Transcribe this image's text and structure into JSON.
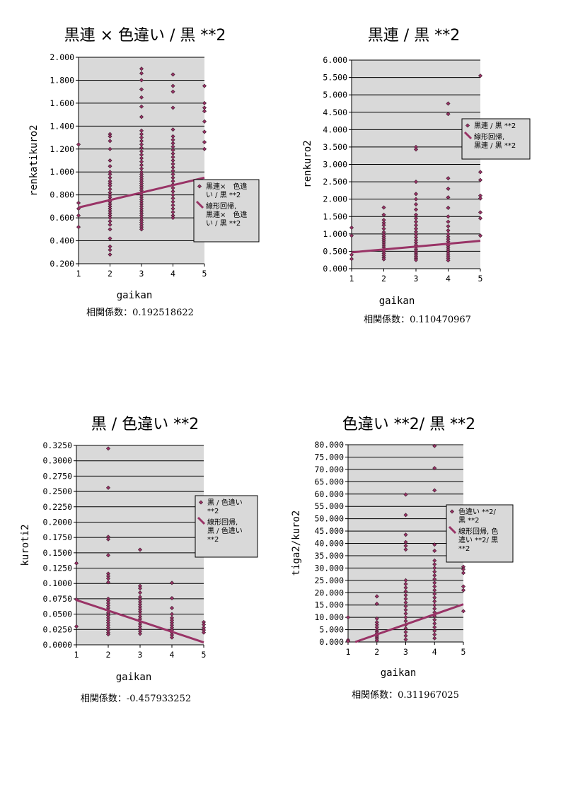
{
  "chart_data": [
    {
      "type": "scatter",
      "title": "黒連 × 色違い / 黒 **2",
      "xlabel": "gaikan",
      "ylabel": "renkatikuro2",
      "xlim": [
        1,
        5
      ],
      "ylim": [
        0.2,
        2.0
      ],
      "x_ticks": [
        "1",
        "2",
        "3",
        "4",
        "5"
      ],
      "y_ticks": [
        "0.200",
        "0.400",
        "0.600",
        "0.800",
        "1.000",
        "1.200",
        "1.400",
        "1.600",
        "1.800",
        "2.000"
      ],
      "correlation_label": "相関係数：0.192518622",
      "legend": {
        "position": "right",
        "series_label": [
          "黒連×　色違",
          "い / 黒 **2"
        ],
        "trend_label": [
          "線形回帰,",
          "黒連×　色違",
          "い / 黒 **2"
        ]
      },
      "trendline": {
        "x": [
          1,
          5
        ],
        "y": [
          0.69,
          0.95
        ]
      },
      "series": [
        {
          "x": 1,
          "y": [
            1.24,
            0.73,
            0.68,
            0.62,
            0.52
          ]
        },
        {
          "x": 2,
          "y": [
            1.33,
            1.31,
            1.27,
            1.2,
            1.1,
            1.05,
            1.0,
            0.98,
            0.95,
            0.92,
            0.9,
            0.88,
            0.85,
            0.82,
            0.8,
            0.78,
            0.76,
            0.74,
            0.72,
            0.7,
            0.68,
            0.66,
            0.64,
            0.62,
            0.6,
            0.57,
            0.54,
            0.5,
            0.42,
            0.35,
            0.32,
            0.28
          ]
        },
        {
          "x": 3,
          "y": [
            1.9,
            1.86,
            1.8,
            1.72,
            1.65,
            1.57,
            1.48,
            1.36,
            1.33,
            1.3,
            1.27,
            1.24,
            1.21,
            1.18,
            1.15,
            1.12,
            1.09,
            1.06,
            1.03,
            1.0,
            0.98,
            0.96,
            0.94,
            0.92,
            0.9,
            0.88,
            0.86,
            0.84,
            0.82,
            0.8,
            0.78,
            0.76,
            0.74,
            0.72,
            0.7,
            0.68,
            0.66,
            0.64,
            0.62,
            0.6,
            0.58,
            0.56,
            0.54,
            0.52,
            0.5
          ]
        },
        {
          "x": 4,
          "y": [
            1.85,
            1.75,
            1.7,
            1.56,
            1.37,
            1.31,
            1.28,
            1.25,
            1.22,
            1.19,
            1.16,
            1.13,
            1.1,
            1.07,
            1.04,
            1.01,
            0.98,
            0.95,
            0.92,
            0.89,
            0.86,
            0.83,
            0.8,
            0.77,
            0.74,
            0.71,
            0.68,
            0.65,
            0.62,
            0.6
          ]
        },
        {
          "x": 5,
          "y": [
            1.75,
            1.6,
            1.56,
            1.53,
            1.44,
            1.35,
            1.26,
            1.2
          ]
        }
      ]
    },
    {
      "type": "scatter",
      "title": "黒連 / 黒 **2",
      "xlabel": "gaikan",
      "ylabel": "renkuro2",
      "xlim": [
        1,
        5
      ],
      "ylim": [
        0,
        6
      ],
      "x_ticks": [
        "1",
        "2",
        "3",
        "4",
        "5"
      ],
      "y_ticks": [
        "0.000",
        "0.500",
        "1.000",
        "1.500",
        "2.000",
        "2.500",
        "3.000",
        "3.500",
        "4.000",
        "4.500",
        "5.000",
        "5.500",
        "6.000"
      ],
      "correlation_label": "相関係数：0.110470967",
      "legend": {
        "position": "right",
        "series_label": [
          "黒連 / 黒 **2"
        ],
        "trend_label": [
          "線形回帰,",
          "黒連 / 黒 **2"
        ]
      },
      "trendline": {
        "x": [
          1,
          5
        ],
        "y": [
          0.47,
          0.8
        ]
      },
      "series": [
        {
          "x": 1,
          "y": [
            1.18,
            0.95,
            0.4,
            0.28
          ]
        },
        {
          "x": 2,
          "y": [
            1.76,
            1.55,
            1.4,
            1.32,
            1.25,
            1.15,
            1.05,
            0.98,
            0.92,
            0.86,
            0.8,
            0.74,
            0.68,
            0.62,
            0.56,
            0.5,
            0.44,
            0.38,
            0.32,
            0.27
          ]
        },
        {
          "x": 3,
          "y": [
            3.5,
            3.43,
            2.5,
            2.15,
            2.0,
            1.85,
            1.7,
            1.55,
            1.45,
            1.35,
            1.25,
            1.15,
            1.06,
            0.98,
            0.9,
            0.82,
            0.75,
            0.68,
            0.62,
            0.56,
            0.5,
            0.45,
            0.4,
            0.35,
            0.3,
            0.25
          ]
        },
        {
          "x": 4,
          "y": [
            4.75,
            4.45,
            2.6,
            2.3,
            2.05,
            1.75,
            1.5,
            1.35,
            1.22,
            1.1,
            1.0,
            0.92,
            0.85,
            0.78,
            0.72,
            0.66,
            0.6,
            0.54,
            0.48,
            0.42,
            0.36,
            0.3,
            0.24
          ]
        },
        {
          "x": 5,
          "y": [
            5.55,
            2.78,
            2.55,
            2.1,
            2.02,
            1.62,
            1.45,
            0.95
          ]
        }
      ]
    },
    {
      "type": "scatter",
      "title": "黒 / 色違い **2",
      "xlabel": "gaikan",
      "ylabel": "kuroti2",
      "xlim": [
        1,
        5
      ],
      "ylim": [
        0,
        0.325
      ],
      "x_ticks": [
        "1",
        "2",
        "3",
        "4",
        "5"
      ],
      "y_ticks": [
        "0.0000",
        "0.0250",
        "0.0500",
        "0.0750",
        "0.1000",
        "0.1250",
        "0.1500",
        "0.1750",
        "0.2000",
        "0.2250",
        "0.2500",
        "0.2750",
        "0.3000",
        "0.3250"
      ],
      "correlation_label": "相関係数：-0.457933252",
      "legend": {
        "position": "right",
        "series_label": [
          "黒 / 色違い",
          "**2"
        ],
        "trend_label": [
          "線形回帰,",
          "黒 / 色違い",
          "**2"
        ]
      },
      "trendline": {
        "x": [
          1,
          5
        ],
        "y": [
          0.073,
          0.004
        ]
      },
      "series": [
        {
          "x": 1,
          "y": [
            0.133,
            0.074,
            0.03
          ]
        },
        {
          "x": 2,
          "y": [
            0.32,
            0.256,
            0.176,
            0.172,
            0.146,
            0.116,
            0.112,
            0.108,
            0.102,
            0.075,
            0.072,
            0.068,
            0.064,
            0.06,
            0.056,
            0.052,
            0.048,
            0.044,
            0.04,
            0.036,
            0.032,
            0.028,
            0.024,
            0.02,
            0.017
          ]
        },
        {
          "x": 3,
          "y": [
            0.155,
            0.096,
            0.092,
            0.085,
            0.078,
            0.074,
            0.07,
            0.066,
            0.062,
            0.058,
            0.054,
            0.05,
            0.046,
            0.042,
            0.038,
            0.034,
            0.03,
            0.026,
            0.022,
            0.018
          ]
        },
        {
          "x": 4,
          "y": [
            0.101,
            0.076,
            0.06,
            0.05,
            0.044,
            0.04,
            0.036,
            0.032,
            0.028,
            0.024,
            0.02,
            0.016,
            0.012
          ]
        },
        {
          "x": 5,
          "y": [
            0.037,
            0.033,
            0.028,
            0.024,
            0.02
          ]
        }
      ]
    },
    {
      "type": "scatter",
      "title": "色違い **2/ 黒 **2",
      "xlabel": "gaikan",
      "ylabel": "tiga2/kuro2",
      "xlim": [
        1,
        5
      ],
      "ylim": [
        0,
        80
      ],
      "x_ticks": [
        "1",
        "2",
        "3",
        "4",
        "5"
      ],
      "y_ticks": [
        "0.000",
        "5.000",
        "10.000",
        "15.000",
        "20.000",
        "25.000",
        "30.000",
        "35.000",
        "40.000",
        "45.000",
        "50.000",
        "55.000",
        "60.000",
        "65.000",
        "70.000",
        "75.000",
        "80.000"
      ],
      "correlation_label": "相関係数：0.311967025",
      "legend": {
        "position": "right",
        "series_label": [
          "色違い **2/",
          "黒 **2"
        ],
        "trend_label": [
          "線形回帰, 色",
          "違い **2/ 黒",
          "**2"
        ]
      },
      "trendline": {
        "x": [
          1.25,
          5
        ],
        "y": [
          0,
          15.3
        ]
      },
      "series": [
        {
          "x": 1,
          "y": [
            10.0,
            0.8,
            0.3
          ]
        },
        {
          "x": 2,
          "y": [
            18.5,
            15.5,
            9.5,
            8.0,
            7.0,
            6.0,
            5.0,
            4.2,
            3.5,
            2.8,
            2.0,
            1.3,
            0.6
          ]
        },
        {
          "x": 3,
          "y": [
            59.8,
            51.5,
            43.5,
            40.5,
            39.0,
            37.5,
            25.0,
            23.5,
            22.0,
            20.5,
            19.0,
            17.5,
            16.0,
            14.5,
            13.0,
            11.5,
            10.0,
            8.5,
            7.0,
            5.5,
            4.0,
            2.5,
            1.0
          ]
        },
        {
          "x": 4,
          "y": [
            79.5,
            70.5,
            61.5,
            39.5,
            37.0,
            33.0,
            31.5,
            30.0,
            28.5,
            27.0,
            25.5,
            24.0,
            22.5,
            21.0,
            19.5,
            18.0,
            16.5,
            15.0,
            13.5,
            12.0,
            10.5,
            9.0,
            7.5,
            6.0,
            4.5,
            3.0,
            1.5
          ]
        },
        {
          "x": 5,
          "y": [
            30.5,
            29.5,
            28.0,
            22.5,
            21.0,
            12.5
          ]
        }
      ]
    }
  ]
}
